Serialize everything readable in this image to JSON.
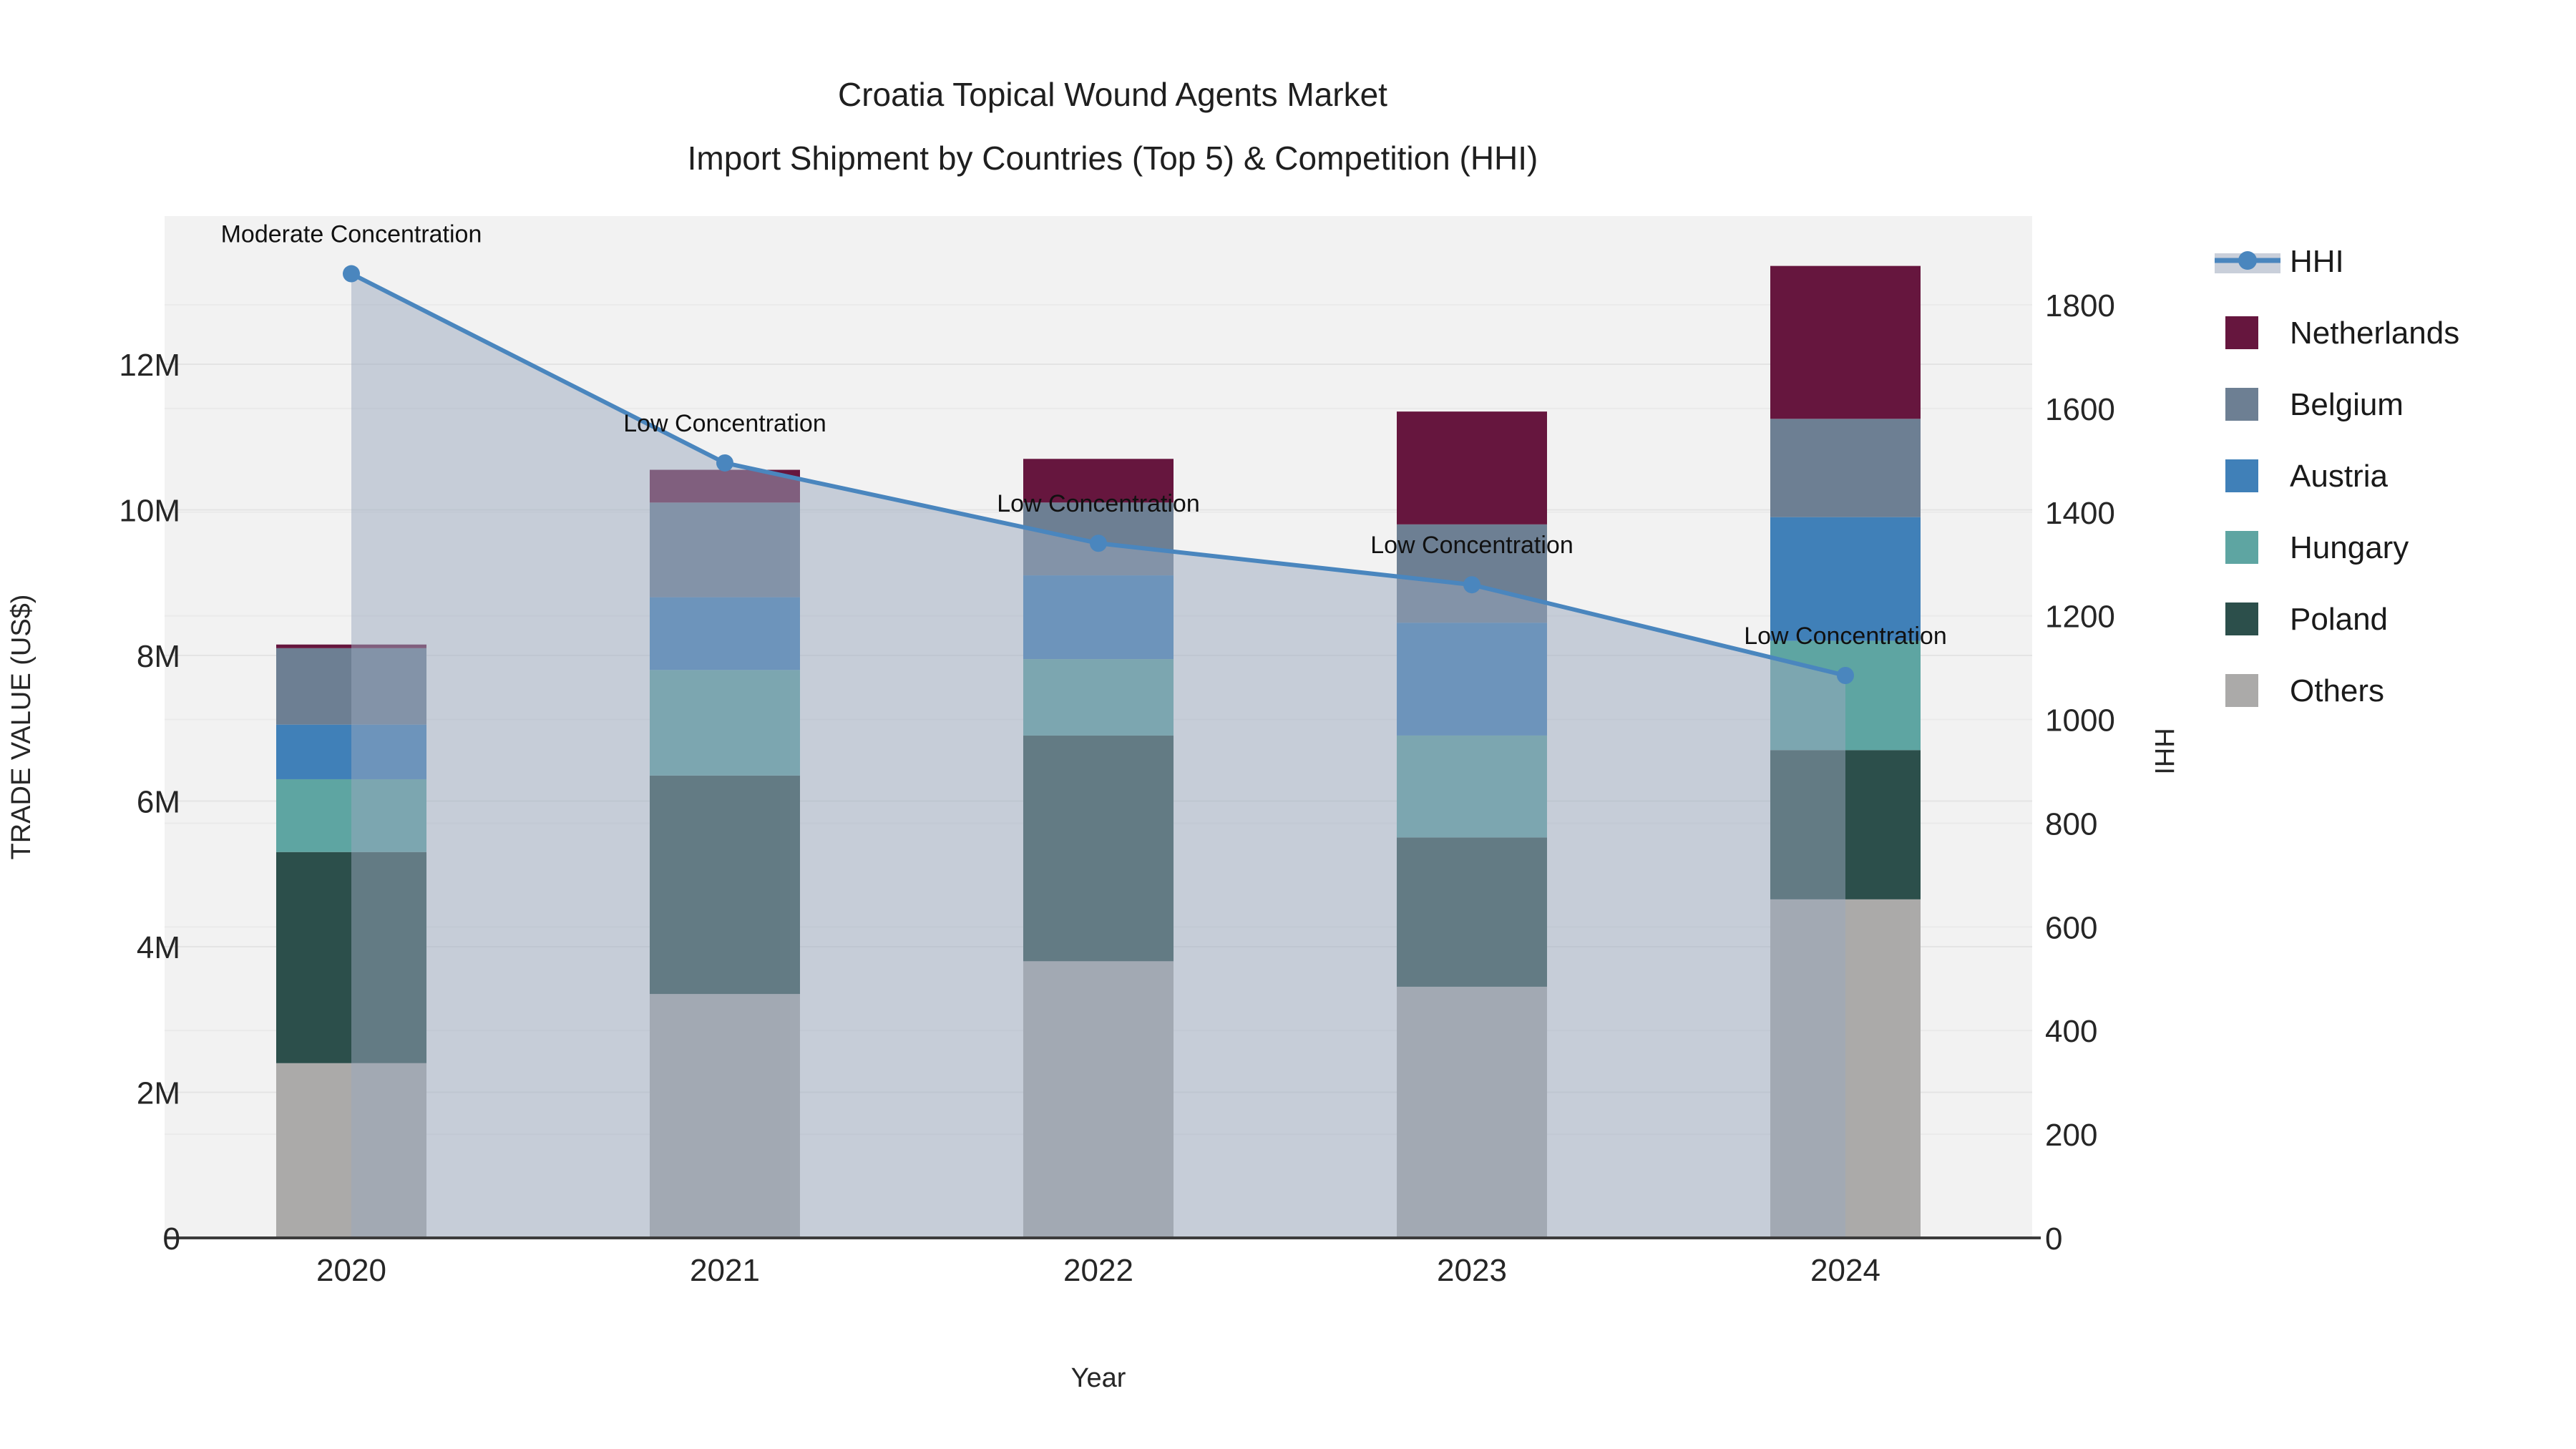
{
  "title": {
    "line1": "Croatia Topical Wound Agents Market",
    "line2": "Import Shipment by Countries (Top 5) & Competition (HHI)"
  },
  "axes": {
    "left": {
      "title": "TRADE VALUE (US$)",
      "tick_labels": [
        "0",
        "2M",
        "4M",
        "6M",
        "8M",
        "10M",
        "12M"
      ],
      "tick_values": [
        0,
        2,
        4,
        6,
        8,
        10,
        12
      ]
    },
    "right": {
      "title": "HHI",
      "tick_labels": [
        "0",
        "200",
        "400",
        "600",
        "800",
        "1000",
        "1200",
        "1400",
        "1600",
        "1800"
      ],
      "tick_values": [
        0,
        200,
        400,
        600,
        800,
        1000,
        1200,
        1400,
        1600,
        1800
      ]
    },
    "x": {
      "title": "Year",
      "categories": [
        "2020",
        "2021",
        "2022",
        "2023",
        "2024"
      ]
    }
  },
  "legend": {
    "items": [
      {
        "label": "HHI",
        "type": "line",
        "color": "#4a86be",
        "band": "#c9cfda"
      },
      {
        "label": "Netherlands",
        "type": "swatch",
        "color": "#66163e"
      },
      {
        "label": "Belgium",
        "type": "swatch",
        "color": "#6d7f93"
      },
      {
        "label": "Austria",
        "type": "swatch",
        "color": "#4080b8"
      },
      {
        "label": "Hungary",
        "type": "swatch",
        "color": "#5ea5a2"
      },
      {
        "label": "Poland",
        "type": "swatch",
        "color": "#2c4f4b"
      },
      {
        "label": "Others",
        "type": "swatch",
        "color": "#abaaa9"
      }
    ]
  },
  "colors": {
    "plot_bg": "#f2f2f2",
    "grid_major": "#e4e4e4",
    "grid_minor": "#eaeaea",
    "axis_line": "#3c3c3c",
    "hhi_line": "#4a86be",
    "hhi_fill": "rgba(154,168,190,0.5)"
  },
  "chart_data": {
    "type": "bar",
    "subtype": "stacked-bars-with-line-overlay",
    "units": "trade value in millions of US$; HHI on right axis",
    "categories": [
      "2020",
      "2021",
      "2022",
      "2023",
      "2024"
    ],
    "series": [
      {
        "name": "Others",
        "color": "#abaaa9",
        "values": [
          2.4,
          3.35,
          3.8,
          3.45,
          4.65
        ]
      },
      {
        "name": "Poland",
        "color": "#2c4f4b",
        "values": [
          2.9,
          3.0,
          3.1,
          2.05,
          2.05
        ]
      },
      {
        "name": "Hungary",
        "color": "#5ea5a2",
        "values": [
          1.0,
          1.45,
          1.05,
          1.4,
          1.5
        ]
      },
      {
        "name": "Austria",
        "color": "#4080b8",
        "values": [
          0.75,
          1.0,
          1.15,
          1.55,
          1.7
        ]
      },
      {
        "name": "Belgium",
        "color": "#6d7f93",
        "values": [
          1.05,
          1.3,
          1.0,
          1.35,
          1.35
        ]
      },
      {
        "name": "Netherlands",
        "color": "#66163e",
        "values": [
          0.05,
          0.45,
          0.6,
          1.55,
          2.1
        ]
      }
    ],
    "totals": [
      8.15,
      10.55,
      10.7,
      11.35,
      13.35
    ],
    "line_series": {
      "name": "HHI",
      "axis": "right",
      "fill": "tozeroy",
      "values": [
        1860,
        1495,
        1340,
        1260,
        1085
      ]
    },
    "annotations": [
      {
        "category": "2020",
        "text": "Moderate Concentration"
      },
      {
        "category": "2021",
        "text": "Low Concentration"
      },
      {
        "category": "2022",
        "text": "Low Concentration"
      },
      {
        "category": "2023",
        "text": "Low Concentration"
      },
      {
        "category": "2024",
        "text": "Low Concentration"
      }
    ],
    "title": "Croatia Topical Wound Agents Market — Import Shipment by Countries (Top 5) & Competition (HHI)",
    "xlabel": "Year",
    "ylabel_left": "TRADE VALUE (US$)",
    "ylabel_right": "HHI",
    "ylim_left": [
      0,
      13.5
    ],
    "ylim_right": [
      0,
      1860
    ],
    "grid": true,
    "legend_position": "right"
  }
}
